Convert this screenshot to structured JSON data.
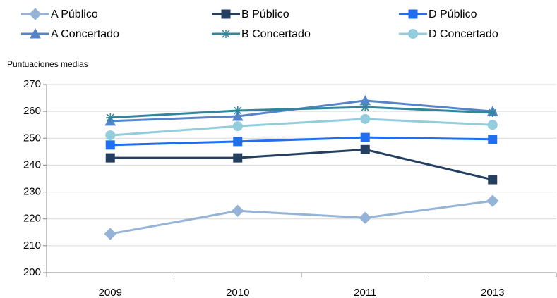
{
  "chart_data": {
    "type": "line",
    "y_label": "Puntuaciones medias",
    "categories": [
      "2009",
      "2010",
      "2011",
      "2013"
    ],
    "series": [
      {
        "name": "A Público",
        "color": "#95b3d7",
        "marker": "diamond",
        "values": [
          214.4,
          223,
          220.4,
          226.7
        ]
      },
      {
        "name": "B Público",
        "color": "#243f60",
        "marker": "square",
        "values": [
          242.7,
          242.7,
          245.8,
          234.6
        ]
      },
      {
        "name": "D Público",
        "color": "#1f6fef",
        "marker": "square",
        "values": [
          247.5,
          248.8,
          250.3,
          249.6
        ]
      },
      {
        "name": "A Concertado",
        "color": "#5585c8",
        "marker": "triangle",
        "values": [
          256.4,
          258.2,
          264,
          260
        ]
      },
      {
        "name": "B Concertado",
        "color": "#31859c",
        "marker": "star",
        "values": [
          257.7,
          260.3,
          261.6,
          259.5
        ]
      },
      {
        "name": "D Concertado",
        "color": "#93cddd",
        "marker": "circle",
        "values": [
          251.1,
          254.5,
          257.2,
          255
        ]
      }
    ],
    "ylim": [
      200,
      270
    ],
    "yticks": [
      200,
      210,
      220,
      230,
      240,
      250,
      260,
      270
    ],
    "grid": true,
    "legend": "top"
  }
}
